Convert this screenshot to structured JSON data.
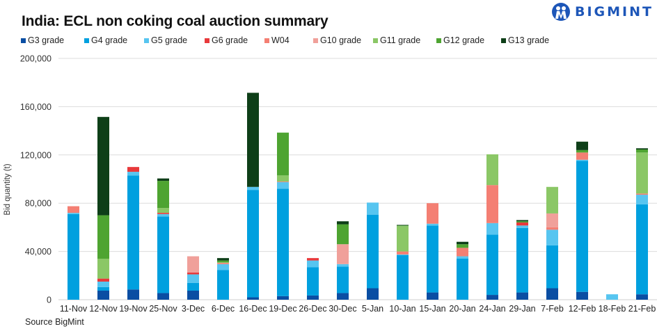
{
  "brand": {
    "name": "BIGMINT",
    "color": "#1d56b8"
  },
  "chart_data": {
    "type": "bar",
    "stacked": true,
    "title": "India: ECL non coking coal auction summary",
    "xlabel": "",
    "ylabel": "Bid quantity (t)",
    "ylim": [
      0,
      200000
    ],
    "yticks": [
      0,
      40000,
      80000,
      120000,
      160000,
      200000
    ],
    "ytick_labels": [
      "0",
      "40,000",
      "80,000",
      "120,000",
      "160,000",
      "200,000"
    ],
    "grid": true,
    "legend_position": "top",
    "categories": [
      "11-Nov",
      "12-Nov",
      "19-Nov",
      "25-Nov",
      "3-Dec",
      "6-Dec",
      "16-Dec",
      "19-Dec",
      "26-Dec",
      "30-Dec",
      "5-Jan",
      "10-Jan",
      "15-Jan",
      "20-Jan",
      "24-Jan",
      "29-Jan",
      "7-Feb",
      "12-Feb",
      "18-Feb",
      "21-Feb"
    ],
    "series": [
      {
        "name": "G3 grade",
        "color": "#0a4ea3",
        "values": [
          0,
          7500,
          8500,
          5500,
          7500,
          0,
          2000,
          3000,
          3500,
          5500,
          9500,
          0,
          6000,
          0,
          4000,
          6000,
          9500,
          6500,
          0,
          4500
        ]
      },
      {
        "name": "G4 grade",
        "color": "#00a0df",
        "values": [
          71000,
          3000,
          94500,
          63500,
          6500,
          24500,
          89000,
          89000,
          23500,
          22000,
          61000,
          37000,
          55500,
          34000,
          50000,
          53500,
          35500,
          108500,
          0,
          74500
        ]
      },
      {
        "name": "G5 grade",
        "color": "#57c5f0",
        "values": [
          1000,
          4500,
          3000,
          2000,
          7000,
          5000,
          2500,
          5500,
          5500,
          2000,
          10000,
          500,
          1500,
          2000,
          9500,
          2000,
          13000,
          1000,
          4500,
          8000
        ]
      },
      {
        "name": "G6 grade",
        "color": "#e8393b",
        "values": [
          0,
          2500,
          4000,
          1000,
          1500,
          0,
          0,
          0,
          2000,
          0,
          0,
          0,
          0,
          0,
          0,
          2500,
          0,
          0,
          0,
          0
        ]
      },
      {
        "name": "W04",
        "color": "#f47f73",
        "values": [
          5500,
          0,
          0,
          0,
          0,
          1000,
          0,
          500,
          0,
          0,
          0,
          2500,
          17000,
          7000,
          31500,
          0,
          2000,
          6000,
          0,
          1000
        ]
      },
      {
        "name": "G10 grade",
        "color": "#f0a09a",
        "values": [
          0,
          0,
          0,
          0,
          13500,
          0,
          0,
          0,
          0,
          16500,
          0,
          0,
          0,
          0,
          0,
          0,
          11500,
          0,
          0,
          0
        ]
      },
      {
        "name": "G11 grade",
        "color": "#8bc766",
        "values": [
          0,
          16500,
          0,
          4000,
          0,
          500,
          0,
          5000,
          0,
          0,
          0,
          21000,
          0,
          0,
          25500,
          0,
          22000,
          0,
          0,
          34000
        ]
      },
      {
        "name": "G12 grade",
        "color": "#4ea431",
        "values": [
          0,
          36000,
          0,
          22500,
          0,
          1500,
          0,
          35500,
          0,
          16500,
          0,
          500,
          0,
          3000,
          0,
          1000,
          0,
          2000,
          0,
          2500
        ]
      },
      {
        "name": "G13 grade",
        "color": "#0e3f18",
        "values": [
          0,
          81500,
          0,
          2000,
          0,
          2000,
          78000,
          0,
          0,
          2500,
          0,
          500,
          0,
          2000,
          0,
          1000,
          0,
          7000,
          0,
          1000
        ]
      }
    ],
    "annotations": [
      "Source BigMint"
    ]
  }
}
